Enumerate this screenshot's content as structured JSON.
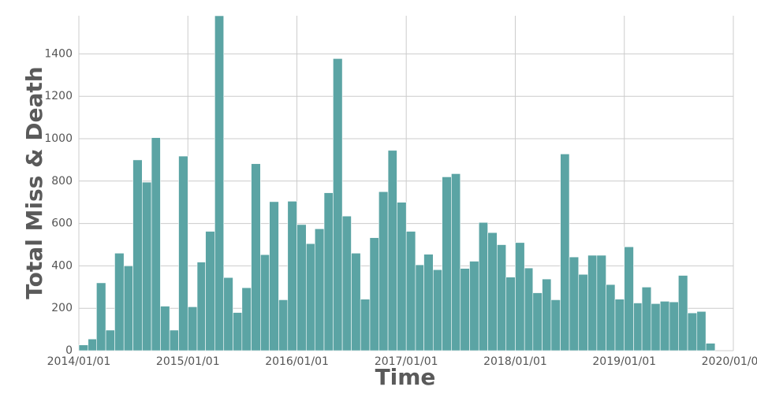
{
  "chart_data": {
    "type": "bar",
    "xlabel": "Time",
    "ylabel": "Total Miss & Death",
    "color": "#5ba4a4",
    "grid": true,
    "x": [
      "2014/01/01",
      "2014/02/01",
      "2014/03/01",
      "2014/04/01",
      "2014/05/01",
      "2014/06/01",
      "2014/07/01",
      "2014/08/01",
      "2014/09/01",
      "2014/10/01",
      "2014/11/01",
      "2014/12/01",
      "2015/01/01",
      "2015/02/01",
      "2015/03/01",
      "2015/04/01",
      "2015/05/01",
      "2015/06/01",
      "2015/07/01",
      "2015/08/01",
      "2015/09/01",
      "2015/10/01",
      "2015/11/01",
      "2015/12/01",
      "2016/01/01",
      "2016/02/01",
      "2016/03/01",
      "2016/04/01",
      "2016/05/01",
      "2016/06/01",
      "2016/07/01",
      "2016/08/01",
      "2016/09/01",
      "2016/10/01",
      "2016/11/01",
      "2016/12/01",
      "2017/01/01",
      "2017/02/01",
      "2017/03/01",
      "2017/04/01",
      "2017/05/01",
      "2017/06/01",
      "2017/07/01",
      "2017/08/01",
      "2017/09/01",
      "2017/10/01",
      "2017/11/01",
      "2017/12/01",
      "2018/01/01",
      "2018/02/01",
      "2018/03/01",
      "2018/04/01",
      "2018/05/01",
      "2018/06/01",
      "2018/07/01",
      "2018/08/01",
      "2018/09/01",
      "2018/10/01",
      "2018/11/01",
      "2018/12/01",
      "2019/01/01",
      "2019/02/01",
      "2019/03/01",
      "2019/04/01",
      "2019/05/01",
      "2019/06/01",
      "2019/07/01",
      "2019/08/01",
      "2019/09/01",
      "2019/10/01"
    ],
    "values": [
      27,
      55,
      320,
      97,
      460,
      400,
      900,
      795,
      1005,
      210,
      97,
      918,
      207,
      418,
      563,
      1580,
      345,
      180,
      297,
      882,
      453,
      703,
      240,
      705,
      595,
      505,
      575,
      745,
      1378,
      635,
      460,
      243,
      533,
      750,
      945,
      700,
      563,
      405,
      455,
      382,
      820,
      835,
      388,
      422,
      605,
      557,
      500,
      347,
      510,
      390,
      273,
      338,
      240,
      928,
      442,
      360,
      450,
      450,
      312,
      243,
      490,
      225,
      300,
      222,
      233,
      230,
      355,
      178,
      185,
      35
    ],
    "xlim": [
      "2014/01/01",
      "2020/01/01"
    ],
    "xticks": [
      "2014/01/01",
      "2015/01/01",
      "2016/01/01",
      "2017/01/01",
      "2018/01/01",
      "2019/01/01",
      "2020/01/01"
    ],
    "ylim": [
      0,
      1580
    ],
    "yticks": [
      0,
      200,
      400,
      600,
      800,
      1000,
      1200,
      1400
    ]
  }
}
